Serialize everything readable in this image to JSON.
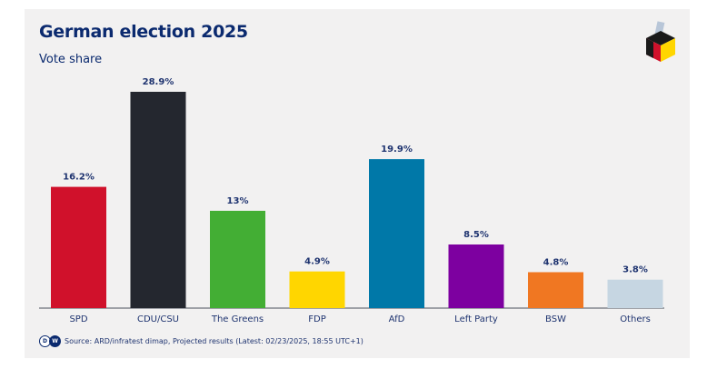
{
  "header": {
    "title": "German election 2025",
    "subtitle": "Vote share"
  },
  "logo_icon": "ballot-box-icon",
  "source": {
    "brand": [
      "D",
      "W"
    ],
    "text": "Source: ARD/infratest dimap, Projected results (Latest: 02/23/2025, 18:55 UTC+1)"
  },
  "chart_data": {
    "type": "bar",
    "title": "German election 2025",
    "subtitle": "Vote share",
    "xlabel": "",
    "ylabel": "",
    "ylim": [
      0,
      30
    ],
    "grid": false,
    "categories": [
      "SPD",
      "CDU/CSU",
      "The Greens",
      "FDP",
      "AfD",
      "Left Party",
      "BSW",
      "Others"
    ],
    "values": [
      16.2,
      28.9,
      13,
      4.9,
      19.9,
      8.5,
      4.8,
      3.8
    ],
    "data_labels": [
      "16.2%",
      "28.9%",
      "13%",
      "4.9%",
      "19.9%",
      "8.5%",
      "4.8%",
      "3.8%"
    ],
    "colors": [
      "#d0112b",
      "#24272f",
      "#43ae34",
      "#ffd600",
      "#0078a8",
      "#7d00a0",
      "#f07722",
      "#c6d6e2"
    ]
  }
}
